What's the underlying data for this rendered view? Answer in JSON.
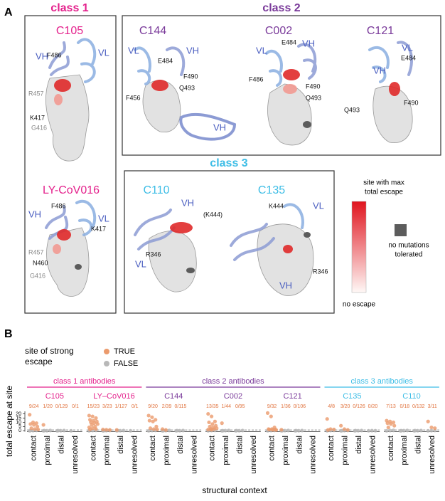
{
  "panel_a": {
    "letter": "A",
    "classes": [
      "class 1",
      "class 2",
      "class 3"
    ],
    "structures": [
      {
        "name": "C105",
        "labels": [
          "VH",
          "VL",
          "F486",
          "R457",
          "K417",
          "G416"
        ]
      },
      {
        "name": "LY-CoV016",
        "labels": [
          "VH",
          "VL",
          "F486",
          "K417",
          "R457",
          "N460",
          "G416"
        ]
      },
      {
        "name": "C144",
        "labels": [
          "VL",
          "E484",
          "VH",
          "F490",
          "Q493",
          "F456",
          "VH"
        ]
      },
      {
        "name": "C002",
        "labels": [
          "VL",
          "E484",
          "VH",
          "F486",
          "F490",
          "Q493"
        ]
      },
      {
        "name": "C121",
        "labels": [
          "VL",
          "E484",
          "VH",
          "F490",
          "Q493"
        ]
      },
      {
        "name": "C110",
        "labels": [
          "VH",
          "(K444)",
          "VL",
          "R346"
        ]
      },
      {
        "name": "C135",
        "labels": [
          "K444",
          "VL",
          "R346",
          "VH"
        ]
      }
    ],
    "legend": {
      "max": [
        "site with max",
        "total escape"
      ],
      "min": "no escape",
      "none": [
        "no mutations",
        "tolerated"
      ]
    }
  },
  "chart_data": {
    "type": "strip",
    "letter": "B",
    "legend_title": [
      "site of strong",
      "escape"
    ],
    "series": [
      {
        "name": "TRUE",
        "color": "#eb9a6c"
      },
      {
        "name": "FALSE",
        "color": "#b8b8b8"
      }
    ],
    "ylabel": "total escape at site",
    "xlabel": "structural context",
    "categories": [
      "contact",
      "proximal",
      "distal",
      "unresolved"
    ],
    "ylim": [
      -1,
      23
    ],
    "yticks": [
      0,
      5,
      10,
      15,
      20
    ],
    "threshold": 1,
    "classes": [
      {
        "name": "class 1 antibodies",
        "color": "#e4218c",
        "facets": [
          {
            "name": "C105",
            "counts": [
              "9/24",
              "1/20",
              "0/129",
              "0/1"
            ],
            "strong": [
              [
                19,
                10,
                9,
                8,
                7,
                5,
                3,
                2,
                1.5
              ],
              [
                7
              ],
              [],
              []
            ],
            "weak": [
              [
                0,
                0.2,
                0.5,
                0.3
              ],
              [
                0,
                0.1,
                0.4,
                0.2
              ],
              [
                0,
                0.1,
                0.3,
                0.2
              ],
              [
                0
              ]
            ]
          },
          {
            "name": "LY–CoV016",
            "counts": [
              "15/23",
              "3/23",
              "1/127",
              "0/1"
            ],
            "strong": [
              [
                18,
                17,
                15,
                13,
                12,
                11,
                10,
                9,
                8,
                7,
                5,
                4,
                3,
                2,
                1.5
              ],
              [
                1.5,
                1.2,
                1
              ],
              [
                1
              ],
              []
            ],
            "weak": [
              [
                0,
                0.3,
                0.5
              ],
              [
                0,
                0.2,
                0.4,
                0.1
              ],
              [
                0,
                0.1,
                0.3,
                0.2
              ],
              [
                0
              ]
            ]
          }
        ]
      },
      {
        "name": "class 2 antibodies",
        "color": "#7a3a9a",
        "facets": [
          {
            "name": "C144",
            "counts": [
              "9/20",
              "2/39",
              "0/115"
            ],
            "strong": [
              [
                18,
                16,
                13,
                12,
                11,
                5,
                3,
                2,
                1.5
              ],
              [
                2,
                1
              ],
              [],
              []
            ],
            "weak": [
              [
                0,
                0.3,
                0.5
              ],
              [
                0,
                0.2,
                0.4,
                0.1
              ],
              [
                0,
                0.1,
                0.3,
                0.2
              ],
              []
            ]
          },
          {
            "name": "C002",
            "counts": [
              "13/35",
              "1/44",
              "0/95"
            ],
            "strong": [
              [
                20,
                17,
                11,
                10,
                8,
                6,
                5,
                4,
                3,
                2,
                2,
                1.5,
                1.2
              ],
              [
                9
              ],
              [],
              []
            ],
            "weak": [
              [
                0,
                0.3,
                0.5
              ],
              [
                0,
                0.2,
                0.4,
                0.1
              ],
              [
                0,
                0.1,
                0.3,
                0.2
              ],
              []
            ]
          },
          {
            "name": "C121",
            "counts": [
              "9/32",
              "1/36",
              "0/106"
            ],
            "strong": [
              [
                21,
                17,
                4,
                2,
                2,
                1.5,
                1.5,
                1.2,
                1
              ],
              [
                1.2
              ],
              [],
              []
            ],
            "weak": [
              [
                0,
                0.3,
                0.5
              ],
              [
                0,
                0.2,
                0.4,
                0.1
              ],
              [
                0,
                0.1,
                0.3,
                0.2
              ],
              []
            ]
          }
        ]
      },
      {
        "name": "class 3 antibodies",
        "color": "#3dbde6",
        "facets": [
          {
            "name": "C135",
            "counts": [
              "4/8",
              "3/20",
              "0/126",
              "0/20"
            ],
            "strong": [
              [
                14,
                2,
                1.5,
                1
              ],
              [
                6,
                2,
                1
              ],
              [],
              []
            ],
            "weak": [
              [
                0,
                0.3,
                0.5
              ],
              [
                0,
                0.2,
                0.4,
                0.1
              ],
              [
                0,
                0.1,
                0.3,
                0.2
              ],
              [
                0,
                0.2,
                0.1
              ]
            ]
          },
          {
            "name": "C110",
            "counts": [
              "7/13",
              "0/18",
              "0/132",
              "3/11"
            ],
            "strong": [
              [
                12,
                11,
                10,
                9,
                8,
                6,
                4
              ],
              [],
              [],
              [
                11,
                4,
                3
              ]
            ],
            "weak": [
              [
                0,
                0.3,
                0.5
              ],
              [
                0,
                0.2,
                0.4,
                0.1
              ],
              [
                0,
                0.1,
                0.3,
                0.2
              ],
              [
                0,
                0.2,
                0.4
              ]
            ]
          }
        ]
      }
    ]
  }
}
